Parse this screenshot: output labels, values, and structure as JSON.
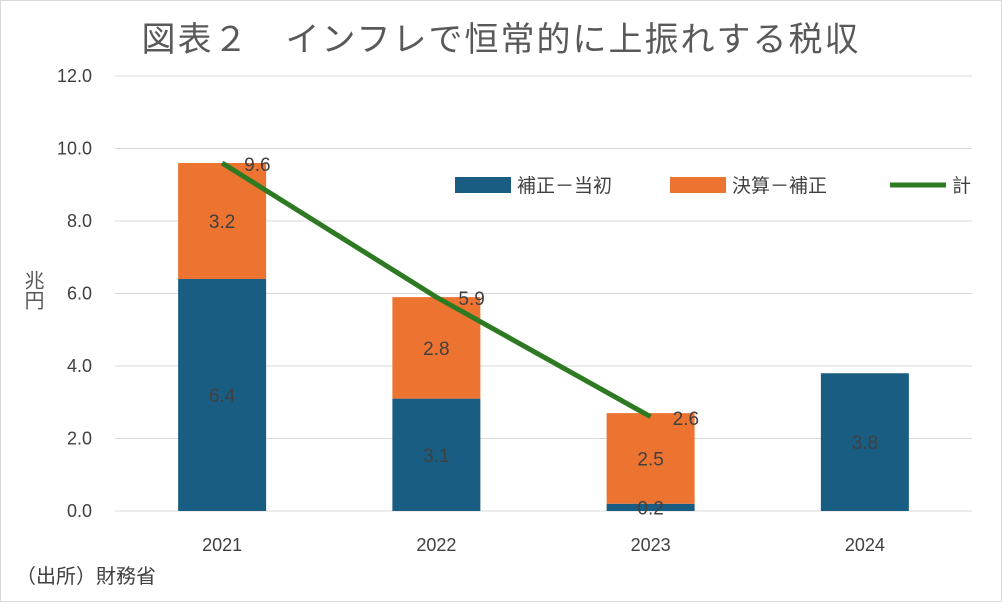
{
  "chart_data": {
    "type": "bar",
    "title": "図表２　インフレで恒常的に上振れする税収",
    "ylabel": "兆円",
    "xlabel": "",
    "ylim": [
      0,
      12
    ],
    "yticks": [
      "0.0",
      "2.0",
      "4.0",
      "6.0",
      "8.0",
      "10.0",
      "12.0"
    ],
    "ytick_values": [
      0,
      2,
      4,
      6,
      8,
      10,
      12
    ],
    "categories": [
      "2021",
      "2022",
      "2023",
      "2024"
    ],
    "series": [
      {
        "name": "補正－当初",
        "kind": "bar",
        "color": "#1a5d82",
        "values": [
          6.4,
          3.1,
          0.2,
          3.8
        ],
        "labels": [
          "6.4",
          "3.1",
          "0.2",
          "3.8"
        ]
      },
      {
        "name": "決算－補正",
        "kind": "bar",
        "color": "#ed7331",
        "values": [
          3.2,
          2.8,
          2.5,
          null
        ],
        "labels": [
          "3.2",
          "2.8",
          "2.5",
          ""
        ]
      },
      {
        "name": "計",
        "kind": "line",
        "color": "#2e7a23",
        "values": [
          9.6,
          5.9,
          2.6,
          null
        ],
        "labels": [
          "9.6",
          "5.9",
          "2.6",
          ""
        ]
      }
    ],
    "legend_position": "top-right",
    "grid": true
  },
  "source_note": "（出所）財務省"
}
